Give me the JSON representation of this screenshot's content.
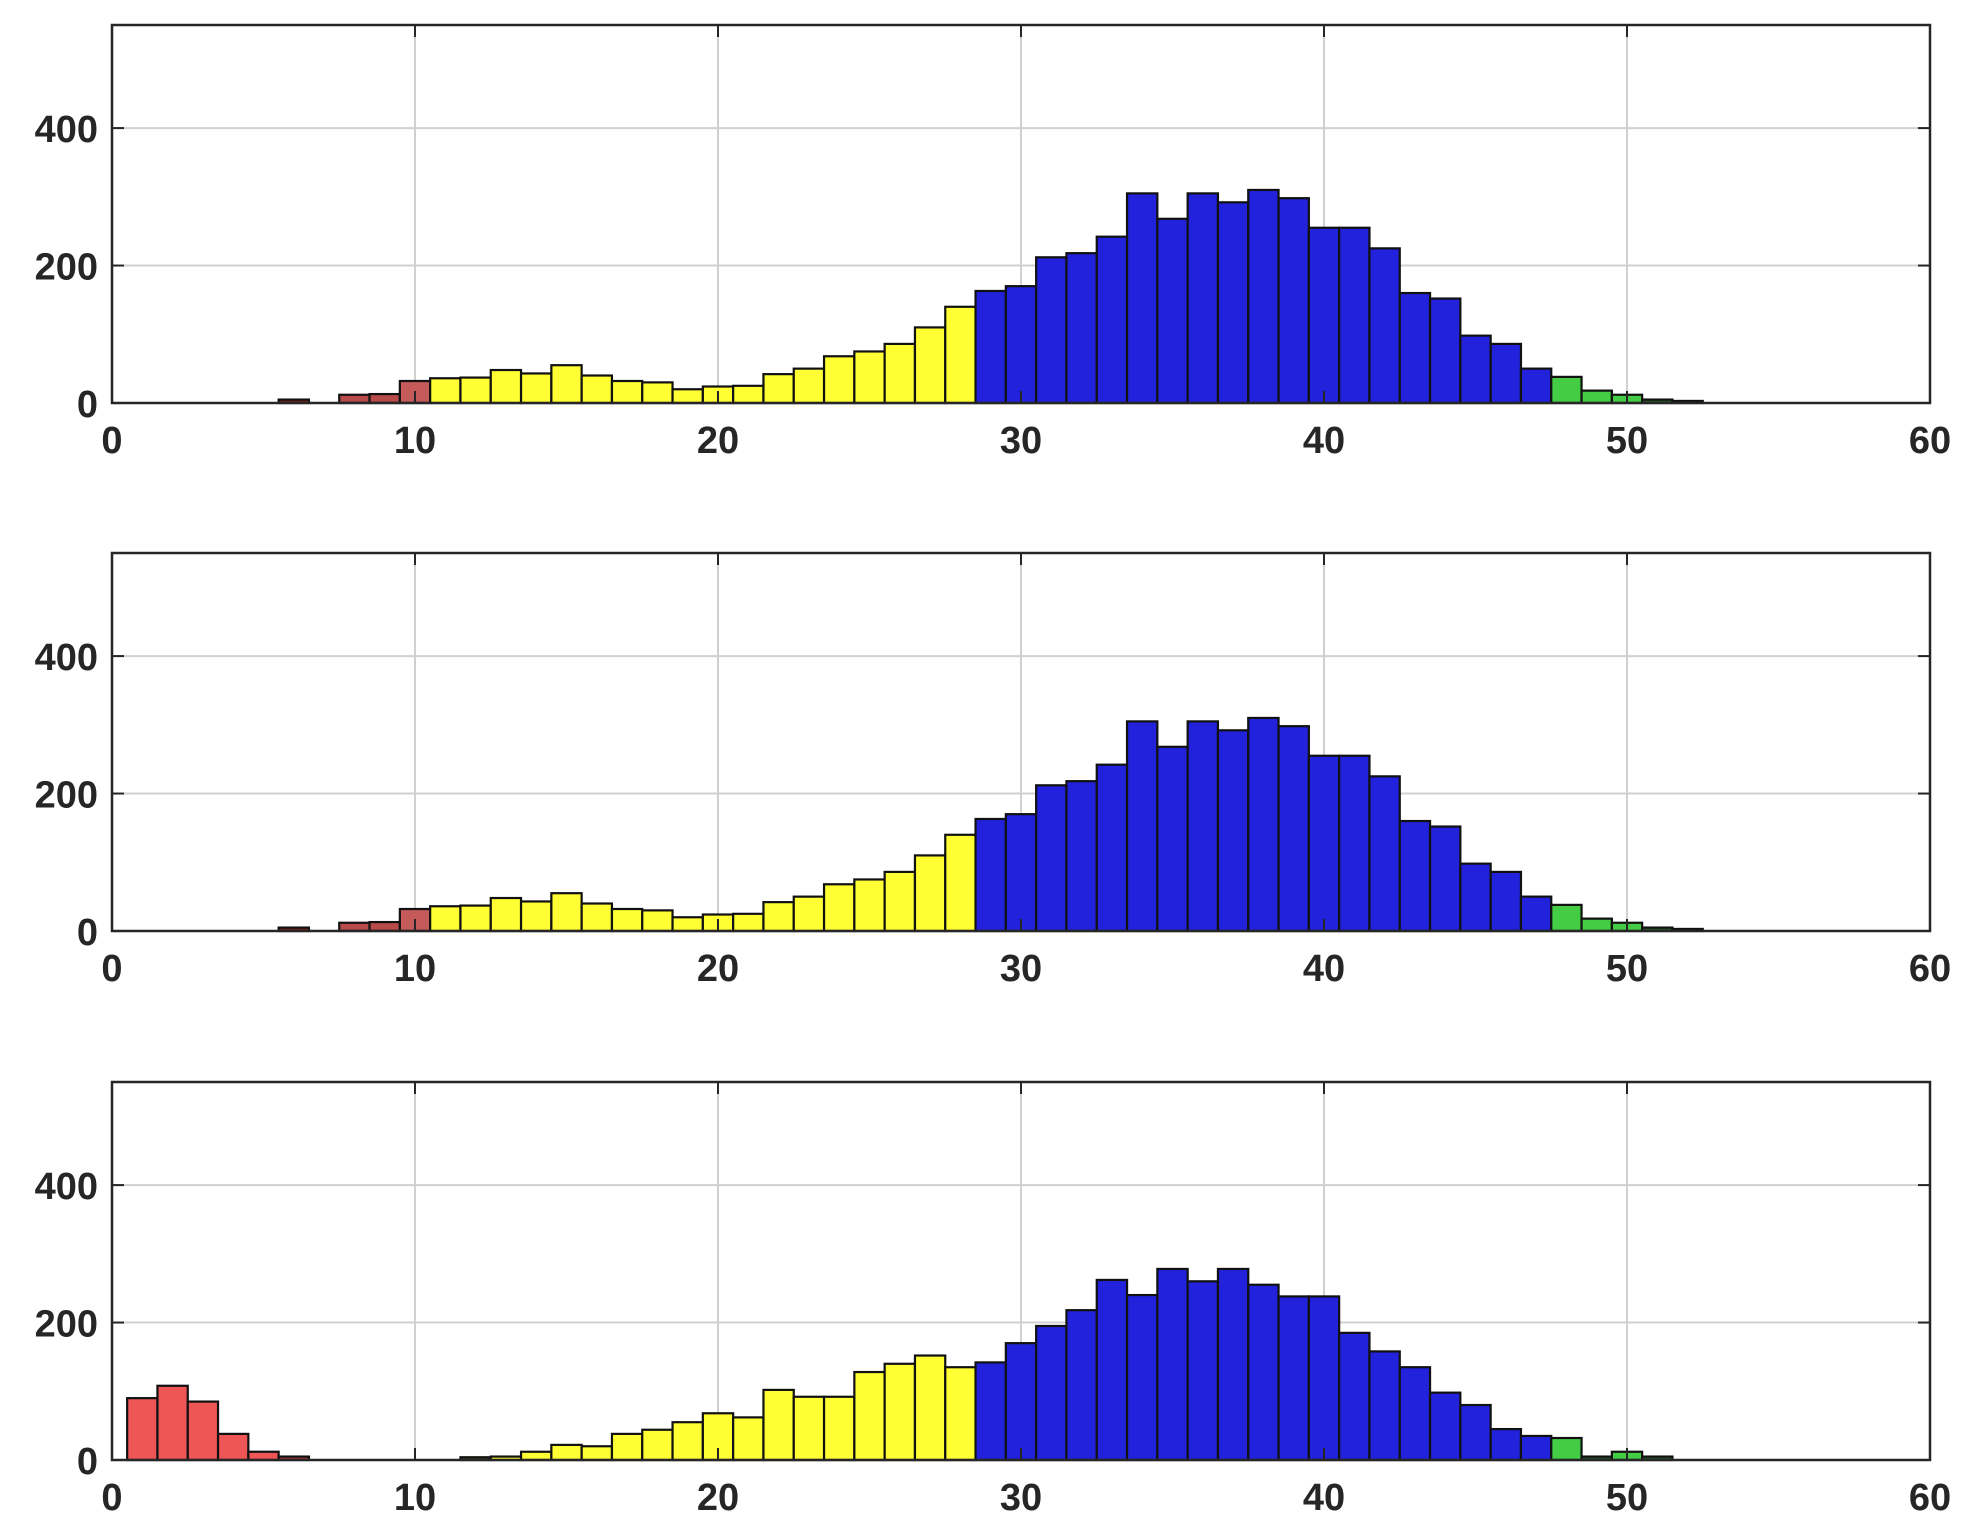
{
  "chart_data": [
    {
      "type": "bar",
      "title": "",
      "xlabel": "",
      "ylabel": "",
      "xlim": [
        0,
        60
      ],
      "ylim": [
        0,
        550
      ],
      "xticks": [
        0,
        10,
        20,
        30,
        40,
        50,
        60
      ],
      "yticks": [
        0,
        200,
        400
      ],
      "grid": true,
      "bin_width": 1,
      "x": [
        6,
        8,
        9,
        10,
        11,
        12,
        13,
        14,
        15,
        16,
        17,
        18,
        19,
        20,
        21,
        22,
        23,
        24,
        25,
        26,
        27,
        28,
        29,
        30,
        31,
        32,
        33,
        34,
        35,
        36,
        37,
        38,
        39,
        40,
        41,
        42,
        43,
        44,
        45,
        46,
        47,
        48,
        49,
        50,
        51,
        52
      ],
      "values": [
        5,
        12,
        13,
        32,
        36,
        37,
        48,
        43,
        55,
        40,
        32,
        30,
        20,
        24,
        25,
        42,
        50,
        68,
        75,
        86,
        110,
        140,
        163,
        170,
        212,
        218,
        242,
        305,
        268,
        305,
        292,
        310,
        298,
        255,
        255,
        225,
        160,
        152,
        98,
        86,
        50,
        38,
        18,
        12,
        5,
        3
      ],
      "bar_colors": [
        "#7a2020",
        "#b84a4a",
        "#b84a4a",
        "#c45a5a",
        "#ffff33",
        "#ffff33",
        "#ffff33",
        "#ffff33",
        "#ffff33",
        "#ffff33",
        "#ffff33",
        "#ffff33",
        "#ffff33",
        "#ffff33",
        "#ffff33",
        "#ffff33",
        "#ffff33",
        "#ffff33",
        "#ffff33",
        "#ffff33",
        "#ffff33",
        "#ffff33",
        "#2222dd",
        "#2222dd",
        "#2222dd",
        "#2222dd",
        "#2222dd",
        "#2222dd",
        "#2222dd",
        "#2222dd",
        "#2222dd",
        "#2222dd",
        "#2222dd",
        "#2222dd",
        "#2222dd",
        "#2222dd",
        "#2222dd",
        "#2222dd",
        "#2222dd",
        "#2222dd",
        "#2222dd",
        "#44cc44",
        "#44cc44",
        "#44cc44",
        "#2a5a2a",
        "#1a3a1a"
      ]
    },
    {
      "type": "bar",
      "title": "",
      "xlabel": "",
      "ylabel": "",
      "xlim": [
        0,
        60
      ],
      "ylim": [
        0,
        550
      ],
      "xticks": [
        0,
        10,
        20,
        30,
        40,
        50,
        60
      ],
      "yticks": [
        0,
        200,
        400
      ],
      "grid": true,
      "bin_width": 1,
      "x": [
        6,
        8,
        9,
        10,
        11,
        12,
        13,
        14,
        15,
        16,
        17,
        18,
        19,
        20,
        21,
        22,
        23,
        24,
        25,
        26,
        27,
        28,
        29,
        30,
        31,
        32,
        33,
        34,
        35,
        36,
        37,
        38,
        39,
        40,
        41,
        42,
        43,
        44,
        45,
        46,
        47,
        48,
        49,
        50,
        51,
        52
      ],
      "values": [
        5,
        12,
        13,
        32,
        36,
        37,
        48,
        43,
        55,
        40,
        32,
        30,
        20,
        24,
        25,
        42,
        50,
        68,
        75,
        86,
        110,
        140,
        163,
        170,
        212,
        218,
        242,
        305,
        268,
        305,
        292,
        310,
        298,
        255,
        255,
        225,
        160,
        152,
        98,
        86,
        50,
        38,
        18,
        12,
        5,
        3
      ],
      "bar_colors": [
        "#7a2020",
        "#b84a4a",
        "#b84a4a",
        "#c45a5a",
        "#ffff33",
        "#ffff33",
        "#ffff33",
        "#ffff33",
        "#ffff33",
        "#ffff33",
        "#ffff33",
        "#ffff33",
        "#ffff33",
        "#ffff33",
        "#ffff33",
        "#ffff33",
        "#ffff33",
        "#ffff33",
        "#ffff33",
        "#ffff33",
        "#ffff33",
        "#ffff33",
        "#2222dd",
        "#2222dd",
        "#2222dd",
        "#2222dd",
        "#2222dd",
        "#2222dd",
        "#2222dd",
        "#2222dd",
        "#2222dd",
        "#2222dd",
        "#2222dd",
        "#2222dd",
        "#2222dd",
        "#2222dd",
        "#2222dd",
        "#2222dd",
        "#2222dd",
        "#2222dd",
        "#2222dd",
        "#44cc44",
        "#44cc44",
        "#44cc44",
        "#2a5a2a",
        "#1a3a1a"
      ]
    },
    {
      "type": "bar",
      "title": "",
      "xlabel": "",
      "ylabel": "",
      "xlim": [
        0,
        60
      ],
      "ylim": [
        0,
        550
      ],
      "xticks": [
        0,
        10,
        20,
        30,
        40,
        50,
        60
      ],
      "yticks": [
        0,
        200,
        400
      ],
      "grid": true,
      "bin_width": 1,
      "x": [
        1,
        2,
        3,
        4,
        5,
        6,
        12,
        13,
        14,
        15,
        16,
        17,
        18,
        19,
        20,
        21,
        22,
        23,
        24,
        25,
        26,
        27,
        28,
        29,
        30,
        31,
        32,
        33,
        34,
        35,
        36,
        37,
        38,
        39,
        40,
        41,
        42,
        43,
        44,
        45,
        46,
        47,
        48,
        49,
        50,
        51
      ],
      "values": [
        90,
        108,
        85,
        38,
        12,
        5,
        4,
        5,
        12,
        22,
        20,
        38,
        44,
        55,
        68,
        62,
        102,
        92,
        92,
        128,
        140,
        152,
        135,
        142,
        170,
        195,
        218,
        262,
        240,
        278,
        260,
        278,
        255,
        238,
        238,
        185,
        158,
        135,
        98,
        80,
        45,
        35,
        32,
        5,
        12,
        5
      ],
      "bar_colors": [
        "#ee5555",
        "#ee5555",
        "#ee5555",
        "#ee5555",
        "#ee5555",
        "#a83a3a",
        "#555522",
        "#ffff33",
        "#ffff33",
        "#ffff33",
        "#ffff33",
        "#ffff33",
        "#ffff33",
        "#ffff33",
        "#ffff33",
        "#ffff33",
        "#ffff33",
        "#ffff33",
        "#ffff33",
        "#ffff33",
        "#ffff33",
        "#ffff33",
        "#ffff33",
        "#2222dd",
        "#2222dd",
        "#2222dd",
        "#2222dd",
        "#2222dd",
        "#2222dd",
        "#2222dd",
        "#2222dd",
        "#2222dd",
        "#2222dd",
        "#2222dd",
        "#2222dd",
        "#2222dd",
        "#2222dd",
        "#2222dd",
        "#2222dd",
        "#2222dd",
        "#2222dd",
        "#2222dd",
        "#44cc44",
        "#2a5a2a",
        "#44cc44",
        "#2a5a2a"
      ]
    }
  ]
}
